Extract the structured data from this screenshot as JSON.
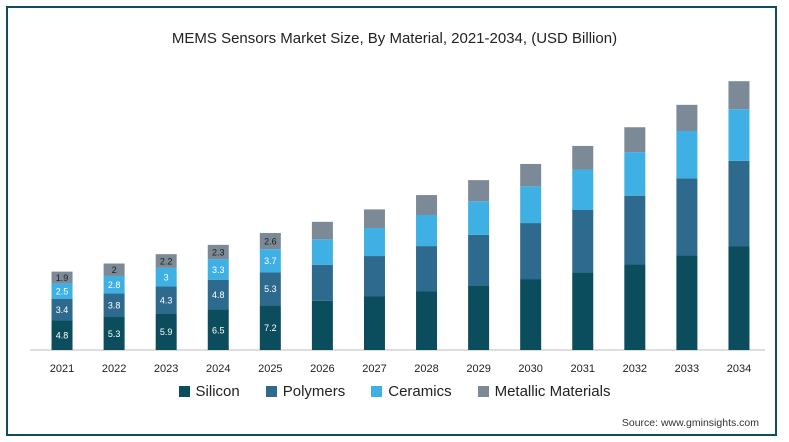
{
  "chart_data": {
    "type": "bar",
    "stacked": true,
    "title": "MEMS Sensors Market Size, By Material, 2021-2034, (USD Billion)",
    "categories": [
      "2021",
      "2022",
      "2023",
      "2024",
      "2025",
      "2026",
      "2027",
      "2028",
      "2029",
      "2030",
      "2031",
      "2032",
      "2033",
      "2034"
    ],
    "series": [
      {
        "name": "Silicon",
        "color": "#0b4d5d",
        "values": [
          4.8,
          5.3,
          5.9,
          6.5,
          7.2,
          7.9,
          8.6,
          9.4,
          10.4,
          11.4,
          12.5,
          13.8,
          15.2,
          16.7
        ],
        "labels": [
          "4.8",
          "5.3",
          "5.9",
          "6.5",
          "7.2",
          "",
          "",
          "",
          "",
          "",
          "",
          "",
          "",
          ""
        ]
      },
      {
        "name": "Polymers",
        "color": "#2e6a8d",
        "values": [
          3.4,
          3.8,
          4.3,
          4.8,
          5.3,
          5.8,
          6.5,
          7.3,
          8.1,
          9.0,
          10.0,
          11.0,
          12.4,
          13.7
        ],
        "labels": [
          "3.4",
          "3.8",
          "4.3",
          "4.8",
          "5.3",
          "",
          "",
          "",
          "",
          "",
          "",
          "",
          "",
          ""
        ]
      },
      {
        "name": "Ceramics",
        "color": "#3fb0e4",
        "values": [
          2.5,
          2.8,
          3.0,
          3.3,
          3.7,
          4.1,
          4.5,
          5.0,
          5.4,
          5.9,
          6.5,
          7.0,
          7.6,
          8.3
        ],
        "labels": [
          "2.5",
          "2.8",
          "3",
          "3.3",
          "3.7",
          "",
          "",
          "",
          "",
          "",
          "",
          "",
          "",
          ""
        ]
      },
      {
        "name": "Metallic Materials",
        "color": "#7b8a96",
        "values": [
          1.9,
          2.0,
          2.2,
          2.3,
          2.6,
          2.8,
          3.0,
          3.2,
          3.4,
          3.6,
          3.8,
          4.0,
          4.2,
          4.5
        ],
        "labels": [
          "1.9",
          "2",
          "2.2",
          "2.3",
          "2.6",
          "",
          "",
          "",
          "",
          "",
          "",
          "",
          "",
          ""
        ]
      }
    ],
    "legend": "bottom",
    "ylim": [
      0,
      45
    ]
  },
  "source_text": "Source: www.gminsights.com"
}
